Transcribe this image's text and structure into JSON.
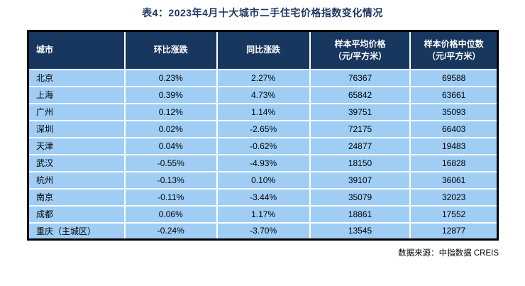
{
  "title": "表4：2023年4月十大城市二手住宅价格指数变化情况",
  "table": {
    "headers": [
      {
        "label": "城市"
      },
      {
        "label": "环比涨跌"
      },
      {
        "label": "同比涨跌"
      },
      {
        "label": "样本平均价格",
        "sub": "（元/平方米）"
      },
      {
        "label": "样本价格中位数",
        "sub": "（元/平方米）"
      }
    ],
    "rows": [
      {
        "city": "北京",
        "mom_change": "0.23%",
        "yoy_change": "2.27%",
        "avg_price": "76367",
        "median_price": "69588"
      },
      {
        "city": "上海",
        "mom_change": "0.39%",
        "yoy_change": "4.73%",
        "avg_price": "65842",
        "median_price": "63661"
      },
      {
        "city": "广州",
        "mom_change": "0.12%",
        "yoy_change": "1.14%",
        "avg_price": "39751",
        "median_price": "35093"
      },
      {
        "city": "深圳",
        "mom_change": "0.02%",
        "yoy_change": "-2.65%",
        "avg_price": "72175",
        "median_price": "66403"
      },
      {
        "city": "天津",
        "mom_change": "0.04%",
        "yoy_change": "-0.62%",
        "avg_price": "24877",
        "median_price": "19483"
      },
      {
        "city": "武汉",
        "mom_change": "-0.55%",
        "yoy_change": "-4.93%",
        "avg_price": "18150",
        "median_price": "16828"
      },
      {
        "city": "杭州",
        "mom_change": "-0.13%",
        "yoy_change": "0.10%",
        "avg_price": "39107",
        "median_price": "36061"
      },
      {
        "city": "南京",
        "mom_change": "-0.11%",
        "yoy_change": "-3.44%",
        "avg_price": "35079",
        "median_price": "32023"
      },
      {
        "city": "成都",
        "mom_change": "0.06%",
        "yoy_change": "1.17%",
        "avg_price": "18861",
        "median_price": "17552"
      },
      {
        "city": "重庆（主城区）",
        "mom_change": "-0.24%",
        "yoy_change": "-3.70%",
        "avg_price": "13545",
        "median_price": "12877"
      }
    ]
  },
  "source": "数据来源：中指数据 CREIS",
  "colors": {
    "title_text": "#1F3864",
    "header_bg": "#17375E",
    "header_text": "#FFFFFF",
    "row_bg": "#9FCDF4",
    "body_text": "#000000",
    "gridline": "#FFFFFF",
    "outer_border": "#000000"
  }
}
